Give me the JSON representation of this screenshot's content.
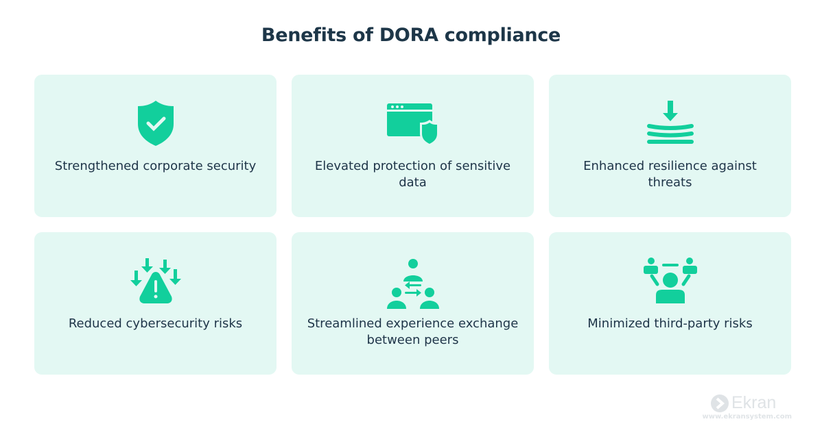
{
  "title": "Benefits of DORA compliance",
  "accent_color": "#12cf9c",
  "cards": [
    {
      "label": "Strengthened corporate security",
      "icon": "shield-check-icon"
    },
    {
      "label": "Elevated protection of sensitive data",
      "icon": "browser-shield-icon"
    },
    {
      "label": "Enhanced resilience against threats",
      "icon": "layers-arrow-down-icon"
    },
    {
      "label": "Reduced cybersecurity risks",
      "icon": "warning-arrows-icon"
    },
    {
      "label": "Streamlined experience exchange between peers",
      "icon": "people-exchange-icon"
    },
    {
      "label": "Minimized third-party risks",
      "icon": "third-party-people-icon"
    }
  ],
  "logo": {
    "name": "Ekran",
    "url": "www.ekransystem.com"
  }
}
